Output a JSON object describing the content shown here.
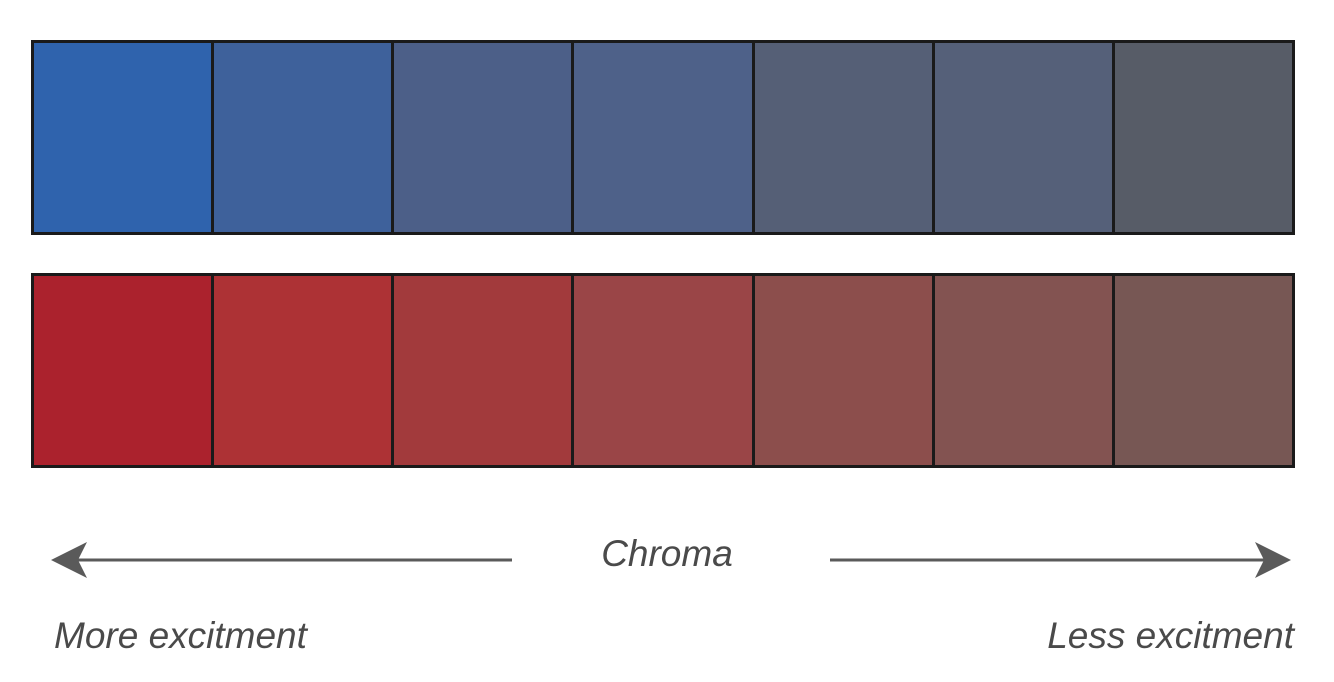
{
  "rows": {
    "blue": [
      "#2f63ad",
      "#3e619b",
      "#4c5f88",
      "#4e6189",
      "#555f76",
      "#556079",
      "#575c67"
    ],
    "red": [
      "#ab222d",
      "#ad3235",
      "#a23a3c",
      "#9a4547",
      "#8c4e4c",
      "#835351",
      "#775754"
    ]
  },
  "axis": {
    "label": "Chroma",
    "left_label": "More excitment",
    "right_label": "Less excitment",
    "color": "#5a5a5a"
  }
}
